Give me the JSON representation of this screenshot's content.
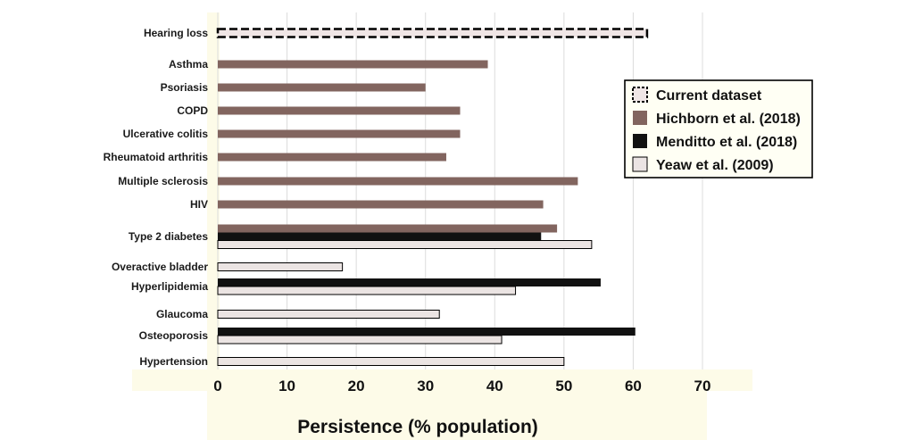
{
  "chart_data": {
    "type": "bar",
    "orientation": "horizontal",
    "xlabel": "Persistence (% population)",
    "xlim": [
      0,
      70
    ],
    "xticks": [
      0,
      10,
      20,
      30,
      40,
      50,
      60,
      70
    ],
    "grid": "vertical",
    "legend_position": "right",
    "categories": [
      "Hearing loss",
      "Asthma",
      "Psoriasis",
      "COPD",
      "Ulcerative colitis",
      "Rheumatoid arthritis",
      "Multiple sclerosis",
      "HIV",
      "Type 2 diabetes",
      "Overactive bladder",
      "Hyperlipidemia",
      "Glaucoma",
      "Osteoporosis",
      "Hypertension"
    ],
    "series": [
      {
        "name": "Current dataset",
        "color": "#f0e6e6",
        "style": "dashed",
        "values": [
          62,
          null,
          null,
          null,
          null,
          null,
          null,
          null,
          null,
          null,
          null,
          null,
          null,
          null
        ]
      },
      {
        "name": "Hichborn et al. (2018)",
        "color": "#82655f",
        "values": [
          null,
          39,
          30,
          35,
          35,
          33,
          52,
          47,
          49,
          null,
          null,
          null,
          null,
          null
        ]
      },
      {
        "name": "Menditto et al. (2018)",
        "color": "#111111",
        "values": [
          null,
          null,
          null,
          null,
          null,
          null,
          null,
          null,
          46.7,
          null,
          55.3,
          null,
          60.3,
          null
        ]
      },
      {
        "name": "Yeaw et al. (2009)",
        "color": "#ebe4e3",
        "values": [
          null,
          null,
          null,
          null,
          null,
          null,
          null,
          null,
          54,
          18,
          43,
          32,
          41,
          50
        ]
      }
    ]
  }
}
